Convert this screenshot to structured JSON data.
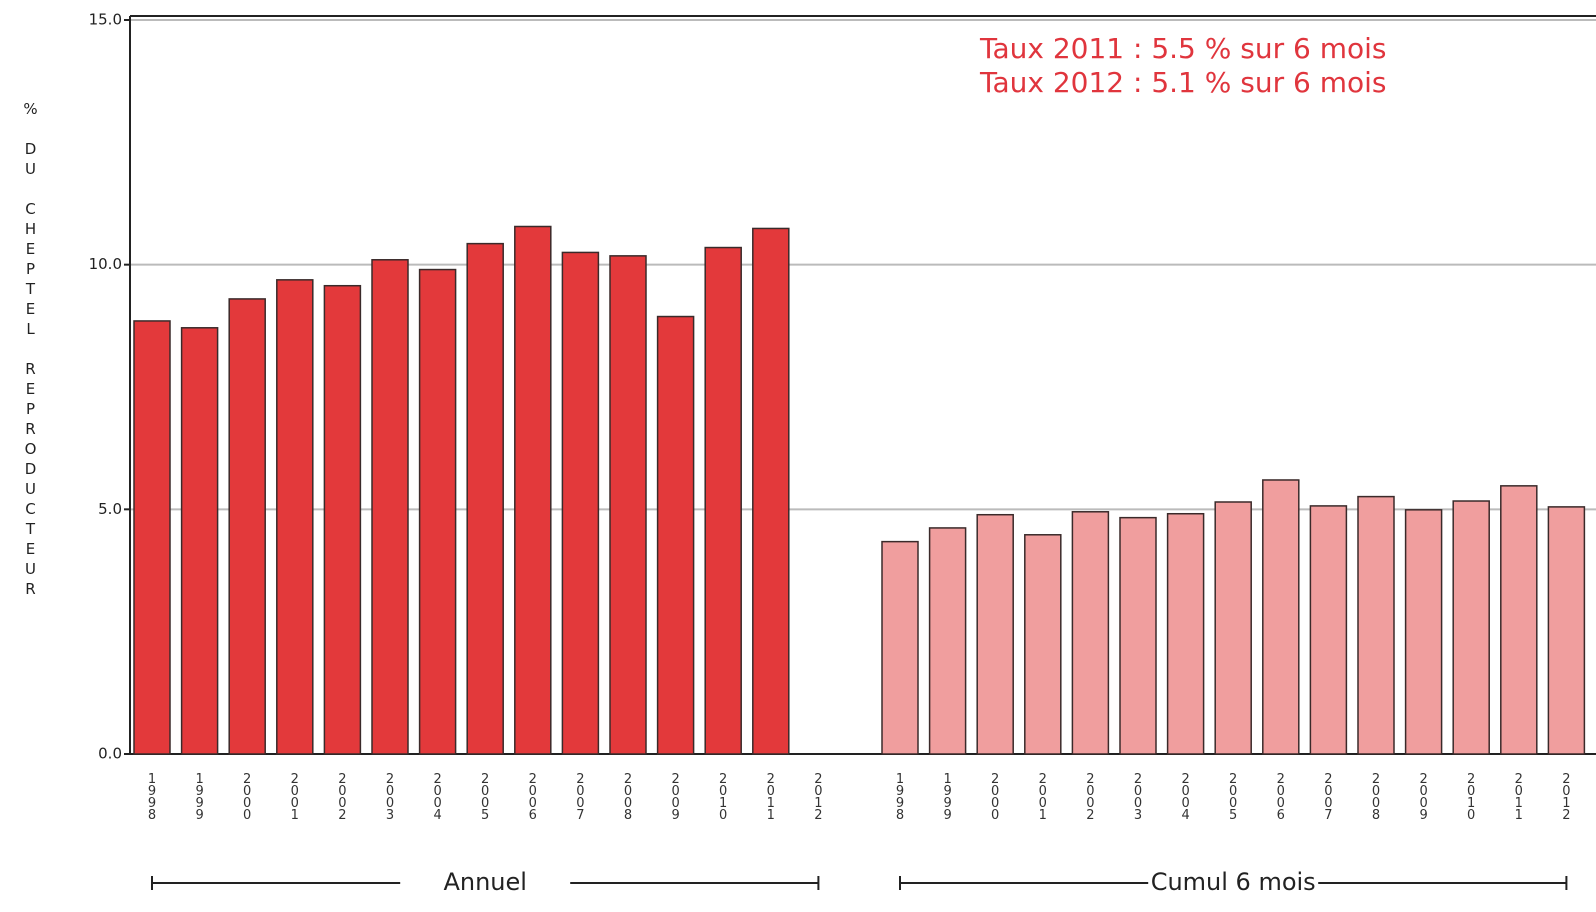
{
  "chart_data": {
    "type": "bar",
    "y_label": "% DU CHEPTEL REPRODUCTEUR",
    "annotations": [
      "Taux 2011  : 5.5 % sur 6 mois",
      "Taux 2012  : 5.1 % sur 6 mois"
    ],
    "ylim": [
      0,
      15
    ],
    "yticks": [
      {
        "value": 0,
        "label": "0.0"
      },
      {
        "value": 5,
        "label": "5.0"
      },
      {
        "value": 10,
        "label": "10.0"
      },
      {
        "value": 15,
        "label": "15.0"
      }
    ],
    "grid": true,
    "groups": [
      {
        "name": "Annuel",
        "color": "#e3393b",
        "categories": [
          "1998",
          "1999",
          "2000",
          "2001",
          "2002",
          "2003",
          "2004",
          "2005",
          "2006",
          "2007",
          "2008",
          "2009",
          "2010",
          "2011",
          "2012"
        ],
        "values": [
          8.85,
          8.71,
          9.3,
          9.69,
          9.57,
          10.1,
          9.9,
          10.43,
          10.78,
          10.25,
          10.18,
          8.94,
          10.35,
          10.74,
          null
        ]
      },
      {
        "name": "Cumul 6 mois",
        "color": "#f09e9e",
        "categories": [
          "1998",
          "1999",
          "2000",
          "2001",
          "2002",
          "2003",
          "2004",
          "2005",
          "2006",
          "2007",
          "2008",
          "2009",
          "2010",
          "2011",
          "2012"
        ],
        "values": [
          4.34,
          4.62,
          4.89,
          4.48,
          4.95,
          4.83,
          4.91,
          5.15,
          5.6,
          5.07,
          5.26,
          4.99,
          5.17,
          5.48,
          5.05
        ]
      }
    ]
  }
}
